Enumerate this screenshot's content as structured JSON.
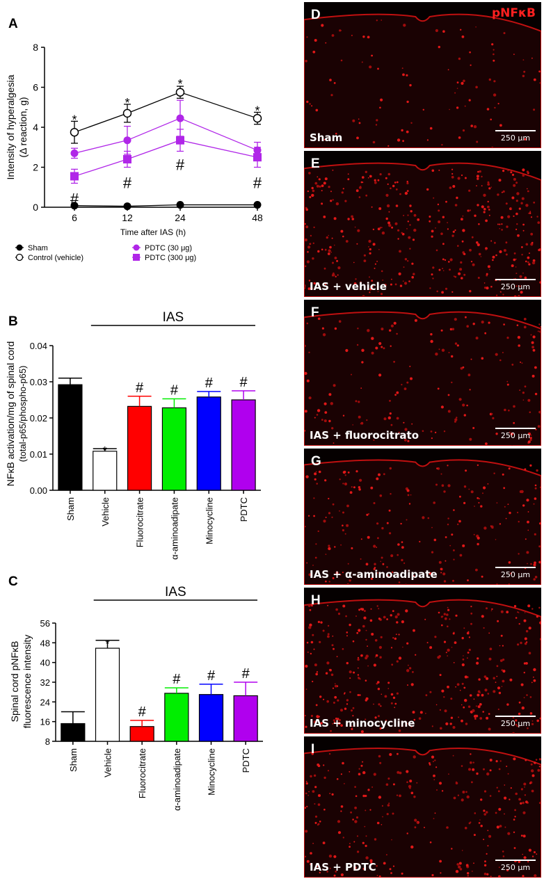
{
  "panelA": {
    "letter": "A",
    "chart_data": {
      "type": "line",
      "ylabel_line1": "Intensity of hyperalgesia",
      "ylabel_line2": "(Δ reaction, g)",
      "xlabel": "Time after IAS (h)",
      "x": [
        6,
        12,
        24,
        48
      ],
      "x_tick_labels": [
        "6",
        "12",
        "24",
        "48"
      ],
      "ylim": [
        0,
        8
      ],
      "y_ticks": [
        0,
        2,
        4,
        6,
        8
      ],
      "series": [
        {
          "name": "Sham",
          "values": [
            0.08,
            0.05,
            0.12,
            0.12
          ],
          "errors": [
            0.05,
            0.05,
            0.05,
            0.05
          ],
          "color": "#000000",
          "marker": "circle-filled"
        },
        {
          "name": "Control (vehicle)",
          "values": [
            3.75,
            4.7,
            5.75,
            4.45
          ],
          "errors": [
            0.55,
            0.45,
            0.3,
            0.3
          ],
          "color": "#000000",
          "marker": "circle-open"
        },
        {
          "name": "PDTC (30 μg)",
          "values": [
            2.7,
            3.35,
            4.45,
            2.85
          ],
          "errors": [
            0.25,
            0.7,
            0.9,
            0.4
          ],
          "color": "#b026e8",
          "marker": "circle-filled"
        },
        {
          "name": "PDTC (300 μg)",
          "values": [
            1.55,
            2.4,
            3.35,
            2.5
          ],
          "errors": [
            0.35,
            0.4,
            0.55,
            0.5
          ],
          "color": "#b026e8",
          "marker": "square-filled"
        }
      ],
      "annotations": [
        {
          "x": 6,
          "text": "*",
          "level": 4.5
        },
        {
          "x": 12,
          "text": "*",
          "level": 5.35
        },
        {
          "x": 24,
          "text": "*",
          "level": 6.3
        },
        {
          "x": 48,
          "text": "*",
          "level": 4.95
        },
        {
          "x": 6,
          "text": "#",
          "level": 0.3
        },
        {
          "x": 12,
          "text": "#",
          "level": 1.1
        },
        {
          "x": 24,
          "text": "#",
          "level": 2.0
        },
        {
          "x": 48,
          "text": "#",
          "level": 1.1
        }
      ]
    }
  },
  "panelB": {
    "letter": "B",
    "chart_data": {
      "type": "bar",
      "ylabel_line1": "NFκB activation/mg of spinal cord",
      "ylabel_line2": "(total-p65/phospho-p65)",
      "categories": [
        "Sham",
        "Vehicle",
        "Fluorocitrate",
        "α-aminoadipate",
        "Minocycline",
        "PDTC"
      ],
      "values": [
        0.0292,
        0.0108,
        0.0232,
        0.0228,
        0.0258,
        0.025
      ],
      "errors": [
        0.0018,
        0.0007,
        0.0028,
        0.0025,
        0.0015,
        0.0025
      ],
      "colors": [
        "#000000",
        "#ffffff",
        "#ff0000",
        "#00ee00",
        "#0000ff",
        "#b000ee"
      ],
      "marks": [
        "",
        "*",
        "#",
        "#",
        "#",
        "#"
      ],
      "ylim": [
        0,
        0.04
      ],
      "y_ticks": [
        "0.00",
        "0.01",
        "0.02",
        "0.03",
        "0.04"
      ],
      "bracket_label": "IAS"
    }
  },
  "panelC": {
    "letter": "C",
    "chart_data": {
      "type": "bar",
      "ylabel_line1": "Spinal cord pNFκB",
      "ylabel_line2": "fluorescence intensity",
      "categories": [
        "Sham",
        "Vehicle",
        "Fluorocitrate",
        "α-aminoadipate",
        "Minocycline",
        "PDTC"
      ],
      "values": [
        15.2,
        45.8,
        14.0,
        27.5,
        27.0,
        26.5
      ],
      "errors": [
        4.8,
        3.2,
        2.5,
        2.2,
        4.2,
        5.5
      ],
      "colors": [
        "#000000",
        "#ffffff",
        "#ff0000",
        "#00ee00",
        "#0000ff",
        "#b000ee"
      ],
      "marks": [
        "",
        "*",
        "#",
        "#",
        "#",
        "#"
      ],
      "ylim": [
        8,
        56
      ],
      "y_ticks": [
        "8",
        "16",
        "24",
        "32",
        "40",
        "48",
        "56"
      ],
      "bracket_label": "IAS"
    }
  },
  "micrographs": {
    "stain_label": "pNFκB",
    "scale_label": "250 μm",
    "panels": [
      {
        "letter": "D",
        "caption": "Sham"
      },
      {
        "letter": "E",
        "caption": "IAS + vehicle"
      },
      {
        "letter": "F",
        "caption": "IAS + fluorocitrato"
      },
      {
        "letter": "G",
        "caption": "IAS + α-aminoadipate"
      },
      {
        "letter": "H",
        "caption": "IAS + minocycline"
      },
      {
        "letter": "I",
        "caption": "IAS + PDTC"
      }
    ]
  }
}
